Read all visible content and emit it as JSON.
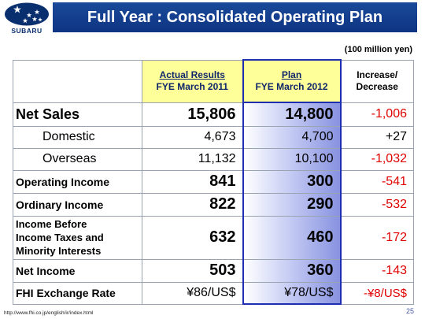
{
  "header": {
    "logo_text": "SUBARU",
    "title": "Full Year : Consolidated Operating Plan"
  },
  "unit_note": "(100 million yen)",
  "columns": {
    "actual": {
      "line1": "Actual Results",
      "line2": "FYE March 2011"
    },
    "plan": {
      "line1": "Plan",
      "line2": "FYE March 2012"
    },
    "change": {
      "line1": "Increase/",
      "line2": "Decrease"
    }
  },
  "rows": [
    {
      "label": "Net Sales",
      "actual": "15,806",
      "plan": "14,800",
      "change": "-1,006"
    },
    {
      "label": "Domestic",
      "actual": "4,673",
      "plan": "4,700",
      "change": "+27"
    },
    {
      "label": "Overseas",
      "actual": "11,132",
      "plan": "10,100",
      "change": "-1,032"
    },
    {
      "label": "Operating Income",
      "actual": "841",
      "plan": "300",
      "change": "-541"
    },
    {
      "label": "Ordinary Income",
      "actual": "822",
      "plan": "290",
      "change": "-532"
    },
    {
      "label_lines": [
        "Income Before",
        "Income Taxes and",
        "Minority Interests"
      ],
      "actual": "632",
      "plan": "460",
      "change": "-172"
    },
    {
      "label": "Net Income",
      "actual": "503",
      "plan": "360",
      "change": "-143"
    },
    {
      "label": "FHI Exchange Rate",
      "actual": "¥86/US$",
      "plan": "¥78/US$",
      "change": "-¥8/US$"
    }
  ],
  "footer": {
    "url": "http://www.fhi.co.jp/english/ir/index.html",
    "page_number": "25"
  },
  "colors": {
    "title_bar": "#0d3482",
    "header_highlight": "#ffff99",
    "plan_border": "#1d2fb0",
    "negative": "#e00000"
  }
}
